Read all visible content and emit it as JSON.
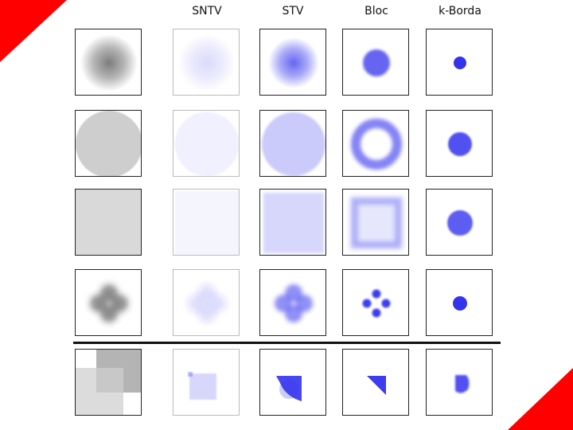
{
  "columns": [
    {
      "key": "reference",
      "label": ""
    },
    {
      "key": "sntv",
      "label": "SNTV"
    },
    {
      "key": "stv",
      "label": "STV"
    },
    {
      "key": "bloc",
      "label": "Bloc"
    },
    {
      "key": "kborda",
      "label": "k-Borda"
    }
  ],
  "rows": [
    {
      "key": "gaussian"
    },
    {
      "key": "disc"
    },
    {
      "key": "square"
    },
    {
      "key": "four-gaussians"
    },
    {
      "key": "overlapping-squares"
    }
  ],
  "colors": {
    "accent_red": "#ff0000",
    "voter_gray": "#6e6e6e",
    "candidate_blue": "#3333ee",
    "frame": "#222222",
    "divider": "#111111"
  },
  "icons": [
    "red-corner-triangle-top-left",
    "red-corner-triangle-bottom-right"
  ]
}
